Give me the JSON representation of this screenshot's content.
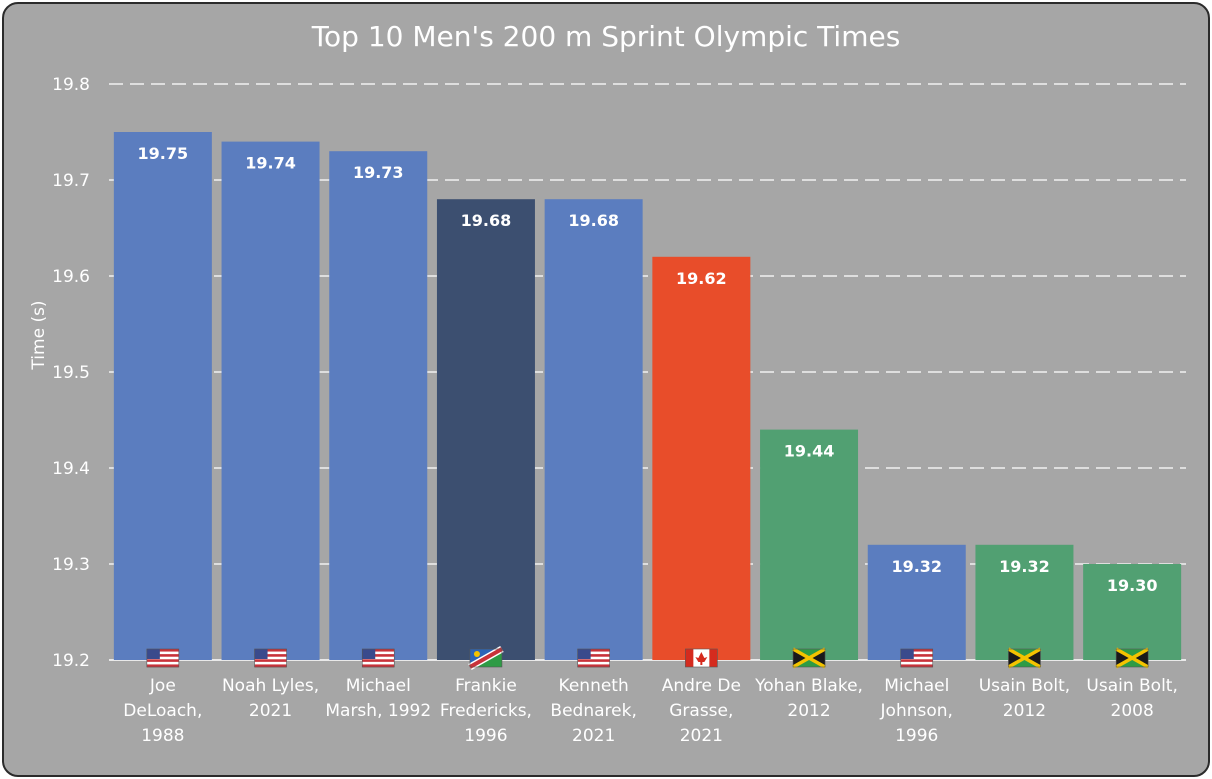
{
  "chart_data": {
    "type": "bar",
    "title": "Top 10 Men's 200 m Sprint Olympic Times",
    "xlabel": "",
    "ylabel": "Time (s)",
    "ylim": [
      19.2,
      19.8
    ],
    "yticks": [
      "19.2",
      "19.3",
      "19.4",
      "19.5",
      "19.6",
      "19.7",
      "19.8"
    ],
    "grid": true,
    "categories": [
      "Joe DeLoach, 1988",
      "Noah Lyles, 2021",
      "Michael Marsh, 1992",
      "Frankie Fredericks, 1996",
      "Kenneth Bednarek, 2021",
      "Andre De Grasse, 2021",
      "Yohan Blake, 2012",
      "Michael Johnson, 1996",
      "Usain Bolt, 2012",
      "Usain Bolt, 2008"
    ],
    "values": [
      19.75,
      19.74,
      19.73,
      19.68,
      19.68,
      19.62,
      19.44,
      19.32,
      19.32,
      19.3
    ],
    "labels": [
      "19.75",
      "19.74",
      "19.73",
      "19.68",
      "19.68",
      "19.62",
      "19.44",
      "19.32",
      "19.32",
      "19.30"
    ],
    "countries": [
      "usa",
      "usa",
      "usa",
      "namibia",
      "usa",
      "canada",
      "jamaica",
      "usa",
      "jamaica",
      "jamaica"
    ],
    "colors": {
      "usa": "#5b7dbf",
      "namibia": "#3c4f70",
      "canada": "#e84d2a",
      "jamaica": "#51a072",
      "background": "#a6a6a6"
    }
  }
}
